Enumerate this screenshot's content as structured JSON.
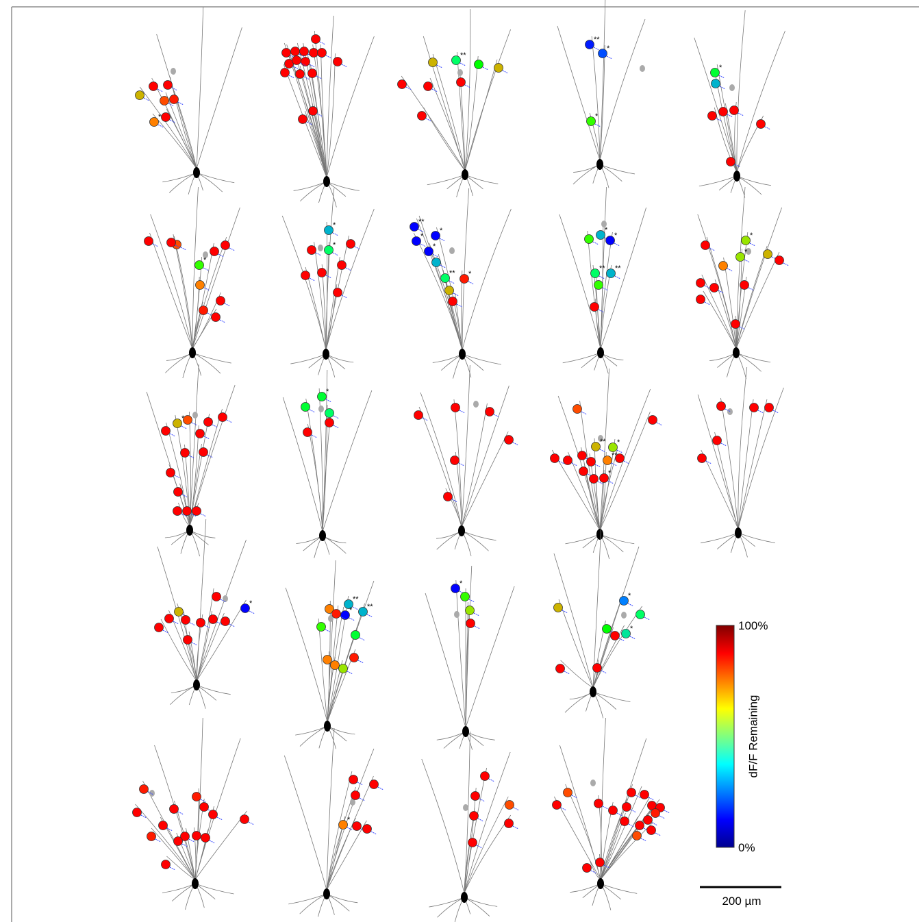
{
  "colorbar": {
    "label": "dF/F Remaining",
    "range": [
      0,
      100
    ],
    "ticks": [
      {
        "value": 100,
        "label": "100%"
      },
      {
        "value": 0,
        "label": "0%"
      }
    ]
  },
  "scale_bar": {
    "label": "200 µm"
  },
  "neurons": [
    {
      "spines": [
        {
          "value": 100
        },
        {
          "value": 90
        },
        {
          "value": 70
        },
        {
          "value": 80
        },
        {
          "value": 85
        },
        {
          "value": 90
        },
        {
          "value": 75,
          "sig": "*"
        }
      ]
    },
    {
      "spines": [
        {
          "value": 95
        },
        {
          "value": 100
        },
        {
          "value": 95
        },
        {
          "value": 100
        },
        {
          "value": 100
        },
        {
          "value": 100
        },
        {
          "value": 100
        },
        {
          "value": 95
        },
        {
          "value": 100
        },
        {
          "value": 95
        },
        {
          "value": 100
        },
        {
          "value": 95
        },
        {
          "value": 90
        },
        {
          "value": 100
        },
        {
          "value": 100
        }
      ]
    },
    {
      "spines": [
        {
          "value": 70
        },
        {
          "value": 40,
          "sig": "**"
        },
        {
          "value": 50
        },
        {
          "value": 70
        },
        {
          "value": 95
        },
        {
          "value": 90
        },
        {
          "value": 90
        },
        {
          "value": 100
        }
      ]
    },
    {
      "spines": [
        {
          "value": 15,
          "sig": "**"
        },
        {
          "value": 20,
          "sig": "*"
        },
        {
          "value": 55,
          "sig": "*"
        }
      ]
    },
    {
      "spines": [
        {
          "value": 45,
          "sig": "*"
        },
        {
          "value": 30
        },
        {
          "value": 95
        },
        {
          "value": 100
        },
        {
          "value": 95
        },
        {
          "value": 95
        },
        {
          "value": 100
        }
      ]
    },
    {
      "spines": [
        {
          "value": 90
        },
        {
          "value": 80
        },
        {
          "value": 90
        },
        {
          "value": 55,
          "sig": "*"
        },
        {
          "value": 100
        },
        {
          "value": 100
        },
        {
          "value": 75
        },
        {
          "value": 85
        },
        {
          "value": 100
        },
        {
          "value": 100
        }
      ]
    },
    {
      "spines": [
        {
          "value": 30,
          "sig": "*"
        },
        {
          "value": 40,
          "sig": "*"
        },
        {
          "value": 90
        },
        {
          "value": 100
        },
        {
          "value": 100
        },
        {
          "value": 100
        },
        {
          "value": 100
        },
        {
          "value": 100
        }
      ]
    },
    {
      "spines": [
        {
          "value": 10,
          "sig": "**"
        },
        {
          "value": 10,
          "sig": "*"
        },
        {
          "value": 10,
          "sig": "*"
        },
        {
          "value": 8,
          "sig": "*"
        },
        {
          "value": 30
        },
        {
          "value": 40,
          "sig": "**"
        },
        {
          "value": 85,
          "sig": "*"
        },
        {
          "value": 70
        },
        {
          "value": 95
        }
      ]
    },
    {
      "spines": [
        {
          "value": 55
        },
        {
          "value": 30,
          "sig": "*"
        },
        {
          "value": 10,
          "sig": "*"
        },
        {
          "value": 40,
          "sig": "**"
        },
        {
          "value": 30,
          "sig": "**"
        },
        {
          "value": 55
        },
        {
          "value": 100
        }
      ]
    },
    {
      "spines": [
        {
          "value": 95
        },
        {
          "value": 65,
          "sig": "*"
        },
        {
          "value": 65,
          "sig": "*"
        },
        {
          "value": 75
        },
        {
          "value": 70
        },
        {
          "value": 95
        },
        {
          "value": 100
        },
        {
          "value": 100
        },
        {
          "value": 100
        },
        {
          "value": 100
        },
        {
          "value": 100
        }
      ]
    },
    {
      "spines": [
        {
          "value": 70,
          "sig": "*"
        },
        {
          "value": 80
        },
        {
          "value": 100
        },
        {
          "value": 100
        },
        {
          "value": 100
        },
        {
          "value": 100
        },
        {
          "value": 100
        },
        {
          "value": 100
        },
        {
          "value": 90
        },
        {
          "value": 100
        },
        {
          "value": 100
        },
        {
          "value": 90
        },
        {
          "value": 100
        }
      ]
    },
    {
      "spines": [
        {
          "value": 45,
          "sig": "*"
        },
        {
          "value": 45
        },
        {
          "value": 40
        },
        {
          "value": 90
        },
        {
          "value": 90
        }
      ]
    },
    {
      "spines": [
        {
          "value": 100
        },
        {
          "value": 100
        },
        {
          "value": 100
        },
        {
          "value": 100
        },
        {
          "value": 100
        },
        {
          "value": 100
        }
      ]
    },
    {
      "spines": [
        {
          "value": 80
        },
        {
          "value": 90
        },
        {
          "value": 70,
          "sig": "**"
        },
        {
          "value": 65,
          "sig": "*"
        },
        {
          "value": 75,
          "sig": "**"
        },
        {
          "value": 100
        },
        {
          "value": 100
        },
        {
          "value": 95
        },
        {
          "value": 100
        },
        {
          "value": 100
        },
        {
          "value": 100
        },
        {
          "value": 100
        },
        {
          "value": 90,
          "sig": "*"
        }
      ]
    },
    {
      "spines": [
        {
          "value": 100
        },
        {
          "value": 90
        },
        {
          "value": 100
        },
        {
          "value": 90
        },
        {
          "value": 100
        }
      ]
    },
    {
      "spines": [
        {
          "value": 100
        },
        {
          "value": 70
        },
        {
          "value": 100
        },
        {
          "value": 100
        },
        {
          "value": 100
        },
        {
          "value": 100
        },
        {
          "value": 100
        },
        {
          "value": 90
        },
        {
          "value": 100
        },
        {
          "value": 10,
          "sig": "*"
        }
      ]
    },
    {
      "spines": [
        {
          "value": 75
        },
        {
          "value": 30,
          "sig": "**"
        },
        {
          "value": 30,
          "sig": "**"
        },
        {
          "value": 8,
          "sig": "*"
        },
        {
          "value": 55
        },
        {
          "value": 45
        },
        {
          "value": 85
        },
        {
          "value": 75
        },
        {
          "value": 75
        },
        {
          "value": 65
        },
        {
          "value": 85
        }
      ]
    },
    {
      "spines": [
        {
          "value": 10,
          "sig": "*"
        },
        {
          "value": 55
        },
        {
          "value": 65
        },
        {
          "value": 100
        }
      ]
    },
    {
      "spines": [
        {
          "value": 70
        },
        {
          "value": 25,
          "sig": "*"
        },
        {
          "value": 40
        },
        {
          "value": 50
        },
        {
          "value": 35,
          "sig": "*"
        },
        {
          "value": 100
        },
        {
          "value": 100
        },
        {
          "value": 100
        }
      ]
    },
    {
      "spines": [
        {
          "value": 85
        },
        {
          "value": 85
        },
        {
          "value": 100
        },
        {
          "value": 100
        },
        {
          "value": 100
        },
        {
          "value": 90
        },
        {
          "value": 90
        },
        {
          "value": 100
        },
        {
          "value": 85
        },
        {
          "value": 100
        },
        {
          "value": 100
        },
        {
          "value": 100
        },
        {
          "value": 100
        },
        {
          "value": 100
        }
      ]
    },
    {
      "spines": [
        {
          "value": 100
        },
        {
          "value": 100
        },
        {
          "value": 100
        },
        {
          "value": 75,
          "sig": "*"
        },
        {
          "value": 100
        },
        {
          "value": 100
        }
      ]
    },
    {
      "spines": [
        {
          "value": 100
        },
        {
          "value": 100
        },
        {
          "value": 100
        },
        {
          "value": 80
        },
        {
          "value": 100
        },
        {
          "value": 90
        }
      ]
    },
    {
      "spines": [
        {
          "value": 80
        },
        {
          "value": 100
        },
        {
          "value": 100
        },
        {
          "value": 100
        },
        {
          "value": 100
        },
        {
          "value": 100
        },
        {
          "value": 95
        },
        {
          "value": 90
        },
        {
          "value": 90
        },
        {
          "value": 100
        },
        {
          "value": 90
        },
        {
          "value": 100
        },
        {
          "value": 80
        },
        {
          "value": 100
        },
        {
          "value": 85
        },
        {
          "value": 100
        },
        {
          "value": 100
        }
      ]
    }
  ]
}
